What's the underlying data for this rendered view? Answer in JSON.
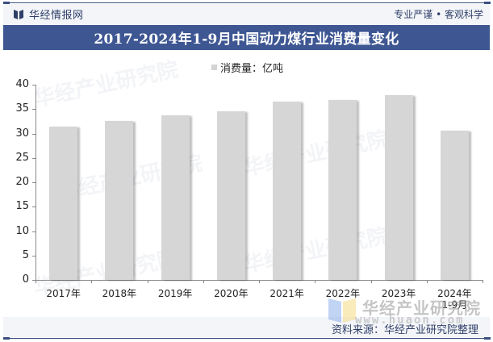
{
  "header": {
    "brand_name": "华经情报网",
    "brand_icon": "book-icon",
    "slogan": "专业严谨 • 客观科学"
  },
  "title": "2017-2024年1-9月中国动力煤行业消费量变化",
  "legend": {
    "label": "消费量：亿吨",
    "color": "#d3d3d3"
  },
  "footer": {
    "logo_text": "华经产业研究院",
    "logo_url": "www.huaon.com",
    "source": "资料来源：华经产业研究院整理"
  },
  "colors": {
    "title_bar": "#3e5793",
    "bar": "#d6d6d6",
    "brand": "#2f3f68"
  },
  "chart_data": {
    "type": "bar",
    "title": "2017-2024年1-9月中国动力煤行业消费量变化",
    "xlabel": "",
    "ylabel": "",
    "categories": [
      "2017年",
      "2018年",
      "2019年",
      "2020年",
      "2021年",
      "2022年",
      "2023年",
      "2024年1-9月"
    ],
    "series": [
      {
        "name": "消费量：亿吨",
        "values": [
          31.4,
          32.6,
          33.7,
          34.6,
          36.5,
          36.9,
          37.9,
          30.6
        ]
      }
    ],
    "ylim": [
      0,
      40
    ],
    "yticks": [
      0,
      5,
      10,
      15,
      20,
      25,
      30,
      35,
      40
    ],
    "grid": false,
    "legend_position": "top-center"
  }
}
